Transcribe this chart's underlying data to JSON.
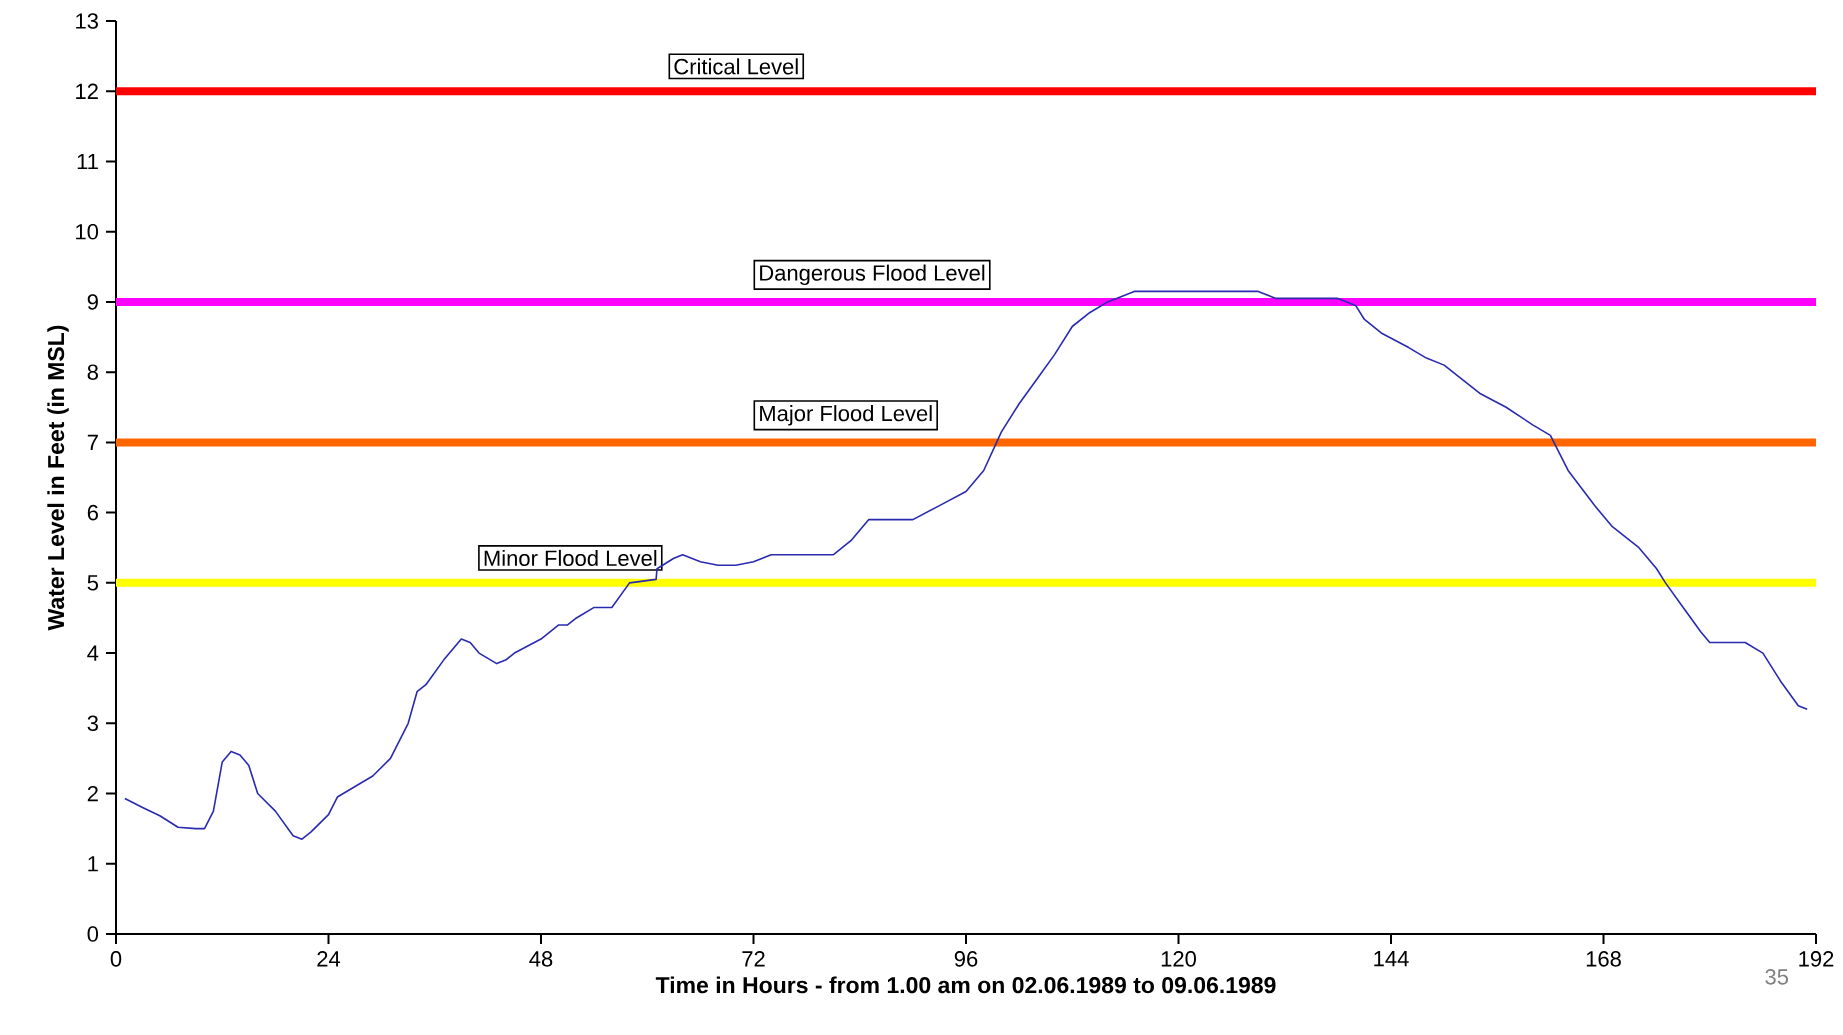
{
  "chart_data": {
    "type": "line",
    "xlabel": "Time in Hours - from 1.00 am on 02.06.1989 to 09.06.1989",
    "ylabel": "Water Level in Feet (in MSL)",
    "xlim": [
      0,
      192
    ],
    "ylim": [
      0,
      13
    ],
    "xticks": [
      0,
      24,
      48,
      72,
      96,
      120,
      144,
      168,
      192
    ],
    "yticks": [
      0,
      1,
      2,
      3,
      4,
      5,
      6,
      7,
      8,
      9,
      10,
      11,
      12,
      13
    ],
    "grid": false,
    "legend": false,
    "marker": "none",
    "line_style": "solid",
    "series": [
      {
        "color": "#2a2ab0",
        "x": [
          1,
          3,
          5,
          7,
          9,
          10,
          11,
          12,
          13,
          14,
          15,
          16,
          18,
          20,
          21,
          22,
          24,
          25,
          27,
          29,
          31,
          33,
          34,
          35,
          37,
          39,
          40,
          41,
          43,
          44,
          45,
          48,
          50,
          51,
          52,
          54,
          56,
          58,
          61,
          61.1,
          63,
          64,
          66,
          68,
          70,
          72,
          74,
          81,
          83,
          85,
          90,
          93,
          96,
          98,
          100,
          102,
          104,
          106,
          108,
          110,
          112,
          115,
          129,
          131,
          138,
          140,
          141,
          143,
          146,
          148,
          150,
          152,
          154,
          157,
          160,
          162,
          164,
          167,
          169,
          172,
          174,
          175,
          177,
          179,
          180,
          184,
          186,
          188,
          190,
          191
        ],
        "values": [
          1.93,
          1.8,
          1.68,
          1.52,
          1.5,
          1.5,
          1.75,
          2.45,
          2.6,
          2.55,
          2.4,
          2.0,
          1.75,
          1.4,
          1.35,
          1.45,
          1.7,
          1.95,
          2.1,
          2.25,
          2.5,
          3.0,
          3.45,
          3.55,
          3.9,
          4.2,
          4.15,
          4.0,
          3.85,
          3.9,
          4.0,
          4.2,
          4.4,
          4.4,
          4.5,
          4.65,
          4.65,
          5.0,
          5.05,
          5.2,
          5.35,
          5.4,
          5.3,
          5.25,
          5.25,
          5.3,
          5.4,
          5.4,
          5.6,
          5.9,
          5.9,
          6.1,
          6.3,
          6.6,
          7.15,
          7.55,
          7.9,
          8.25,
          8.65,
          8.85,
          9.0,
          9.15,
          9.15,
          9.05,
          9.05,
          8.95,
          8.75,
          8.55,
          8.35,
          8.2,
          8.1,
          7.9,
          7.7,
          7.5,
          7.25,
          7.1,
          6.6,
          6.1,
          5.8,
          5.5,
          5.2,
          5.0,
          4.65,
          4.3,
          4.15,
          4.15,
          4.0,
          3.6,
          3.25,
          3.2
        ]
      }
    ],
    "ref_lines": [
      {
        "axis": "y",
        "value": 12,
        "label": "Critical Level",
        "color": "#ff0000"
      },
      {
        "axis": "y",
        "value": 9,
        "label": "Dangerous Flood Level",
        "color": "#ff00ff"
      },
      {
        "axis": "y",
        "value": 7,
        "label": "Major Flood Level",
        "color": "#ff6600"
      },
      {
        "axis": "y",
        "value": 5,
        "label": "Minor Flood Level",
        "color": "#ffff00"
      }
    ],
    "annotations": [
      "35"
    ]
  }
}
